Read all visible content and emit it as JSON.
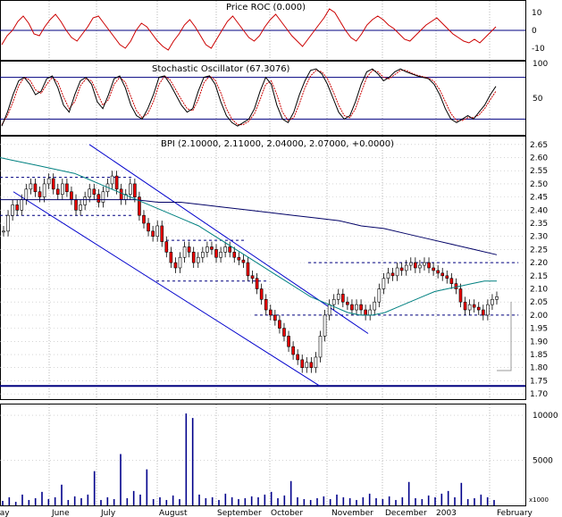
{
  "chart_data": [
    {
      "type": "line",
      "title": "Price ROC (0.000)",
      "y_ticks": [
        10,
        0,
        -10
      ],
      "ylim": [
        -15,
        15
      ],
      "reference_line": 0,
      "series": [
        {
          "values": [
            -8,
            -3,
            0,
            5,
            8,
            4,
            -2,
            -3,
            2,
            6,
            9,
            5,
            0,
            -4,
            -6,
            -2,
            2,
            7,
            8,
            4,
            0,
            -4,
            -8,
            -10,
            -6,
            0,
            4,
            2,
            -2,
            -6,
            -9,
            -11,
            -6,
            -2,
            3,
            6,
            2,
            -3,
            -8,
            -10,
            -5,
            0,
            5,
            8,
            4,
            0,
            -4,
            -6,
            -3,
            2,
            6,
            9,
            5,
            1,
            -3,
            -6,
            -9,
            -5,
            -1,
            3,
            7,
            12,
            10,
            5,
            0,
            -4,
            -6,
            -2,
            3,
            6,
            8,
            6,
            3,
            1,
            -2,
            -5,
            -6,
            -3,
            0,
            3,
            5,
            7,
            4,
            1,
            -2,
            -4,
            -6,
            -7,
            -5,
            -7,
            -4,
            -1,
            2
          ],
          "color": "#cc0000"
        }
      ]
    },
    {
      "type": "line",
      "title": "Stochastic Oscillator (67.3076)",
      "y_ticks": [
        100,
        50
      ],
      "ylim": [
        0,
        100
      ],
      "reference_lines": [
        80,
        20
      ],
      "series": [
        {
          "values": [
            10,
            30,
            55,
            75,
            80,
            70,
            55,
            60,
            78,
            82,
            65,
            40,
            30,
            55,
            75,
            80,
            70,
            45,
            35,
            55,
            78,
            82,
            65,
            40,
            25,
            20,
            35,
            55,
            80,
            82,
            70,
            55,
            40,
            30,
            35,
            60,
            80,
            82,
            70,
            45,
            25,
            15,
            10,
            15,
            20,
            35,
            60,
            80,
            70,
            40,
            20,
            15,
            30,
            55,
            75,
            90,
            92,
            85,
            70,
            50,
            30,
            20,
            25,
            45,
            70,
            88,
            92,
            85,
            75,
            80,
            88,
            92,
            88,
            85,
            82,
            80,
            78,
            70,
            55,
            35,
            20,
            15,
            20,
            25,
            20,
            30,
            40,
            55,
            67
          ],
          "color": "#000000"
        },
        {
          "values": [
            12,
            25,
            45,
            68,
            80,
            76,
            62,
            57,
            70,
            80,
            73,
            52,
            35,
            45,
            68,
            78,
            75,
            58,
            40,
            48,
            70,
            80,
            73,
            52,
            32,
            22,
            28,
            45,
            70,
            82,
            76,
            62,
            48,
            35,
            32,
            48,
            72,
            82,
            76,
            58,
            35,
            20,
            12,
            12,
            17,
            28,
            48,
            70,
            75,
            55,
            30,
            18,
            22,
            42,
            65,
            82,
            90,
            88,
            78,
            60,
            40,
            25,
            22,
            35,
            58,
            80,
            90,
            88,
            80,
            78,
            84,
            90,
            90,
            86,
            83,
            81,
            79,
            74,
            62,
            45,
            28,
            18,
            18,
            22,
            22,
            26,
            35,
            48,
            60
          ],
          "color": "#cc0000"
        }
      ]
    },
    {
      "type": "candlestick",
      "title": "BPI (2.10000, 2.11000, 2.04000, 2.07000, +0.0000)",
      "y_ticks": [
        "2.65",
        "2.60",
        "2.55",
        "2.50",
        "2.45",
        "2.40",
        "2.35",
        "2.30",
        "2.25",
        "2.20",
        "2.15",
        "2.10",
        "2.05",
        "2.00",
        "1.95",
        "1.90",
        "1.85",
        "1.80",
        "1.75",
        "1.70"
      ],
      "ylim": [
        1.68,
        2.68
      ],
      "horizontal_lines": [
        2.525,
        2.38,
        2.285,
        2.13,
        2.2,
        2.0,
        1.73
      ],
      "close": [
        2.32,
        2.38,
        2.42,
        2.4,
        2.44,
        2.48,
        2.5,
        2.47,
        2.45,
        2.5,
        2.52,
        2.48,
        2.46,
        2.5,
        2.47,
        2.44,
        2.4,
        2.42,
        2.45,
        2.48,
        2.46,
        2.43,
        2.47,
        2.5,
        2.53,
        2.48,
        2.44,
        2.46,
        2.5,
        2.45,
        2.38,
        2.35,
        2.32,
        2.3,
        2.34,
        2.28,
        2.24,
        2.2,
        2.18,
        2.22,
        2.26,
        2.24,
        2.2,
        2.22,
        2.24,
        2.26,
        2.25,
        2.22,
        2.24,
        2.26,
        2.24,
        2.22,
        2.21,
        2.2,
        2.15,
        2.14,
        2.1,
        2.06,
        2.02,
        2.0,
        1.98,
        1.95,
        1.92,
        1.88,
        1.85,
        1.83,
        1.8,
        1.82,
        1.8,
        1.84,
        1.92,
        2.0,
        2.04,
        2.06,
        2.08,
        2.05,
        2.04,
        2.02,
        2.04,
        2.02,
        2.0,
        2.02,
        2.05,
        2.1,
        2.14,
        2.16,
        2.15,
        2.18,
        2.17,
        2.19,
        2.2,
        2.18,
        2.19,
        2.2,
        2.18,
        2.17,
        2.16,
        2.15,
        2.14,
        2.12,
        2.1,
        2.05,
        2.02,
        2.04,
        2.03,
        2.02,
        2.0,
        2.04,
        2.06,
        2.07
      ],
      "ma_short": [
        2.6,
        2.59,
        2.58,
        2.57,
        2.56,
        2.55,
        2.54,
        2.52,
        2.5,
        2.48,
        2.46,
        2.44,
        2.42,
        2.4,
        2.38,
        2.36,
        2.34,
        2.31,
        2.28,
        2.25,
        2.22,
        2.19,
        2.16,
        2.13,
        2.1,
        2.07,
        2.05,
        2.03,
        2.01,
        2.0,
        2.0,
        2.01,
        2.03,
        2.05,
        2.07,
        2.09,
        2.1,
        2.11,
        2.12,
        2.13,
        2.13
      ],
      "ma_long": [
        2.44,
        2.44,
        2.44,
        2.44,
        2.44,
        2.44,
        2.44,
        2.43,
        2.43,
        2.42,
        2.41,
        2.4,
        2.39,
        2.38,
        2.37,
        2.36,
        2.34,
        2.33,
        2.31,
        2.29,
        2.27,
        2.25,
        2.23
      ],
      "x_labels": [
        "May",
        "June",
        "July",
        "August",
        "September",
        "October",
        "November",
        "December",
        "2003",
        "February"
      ]
    },
    {
      "type": "bar",
      "title": "",
      "y_ticks": [
        "10000",
        "5000"
      ],
      "unit_label": "x1000",
      "ylim": [
        0,
        11000
      ],
      "values": [
        500,
        900,
        400,
        1200,
        600,
        800,
        1500,
        700,
        900,
        2300,
        600,
        1000,
        800,
        1200,
        3800,
        600,
        900,
        700,
        5700,
        800,
        1600,
        1200,
        4000,
        700,
        900,
        600,
        1100,
        700,
        10200,
        9700,
        1200,
        800,
        900,
        600,
        1300,
        900,
        700,
        800,
        1000,
        900,
        1200,
        1500,
        800,
        1100,
        2700,
        900,
        700,
        600,
        800,
        1000,
        700,
        1200,
        900,
        800,
        600,
        900,
        1300,
        800,
        700,
        1000,
        600,
        900,
        2600,
        800,
        700,
        1100,
        900,
        1300,
        1600,
        900,
        2500,
        700,
        800,
        1200,
        900,
        600
      ]
    }
  ]
}
